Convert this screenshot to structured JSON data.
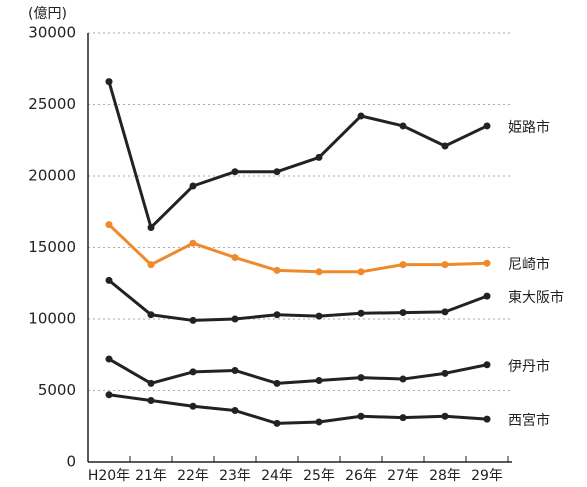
{
  "chart_data": {
    "type": "line",
    "y_label": "(億円)",
    "categories": [
      "H20年",
      "21年",
      "22年",
      "23年",
      "24年",
      "25年",
      "26年",
      "27年",
      "28年",
      "29年"
    ],
    "series": [
      {
        "name": "姫路市",
        "color": "#222222",
        "values": [
          26600,
          16400,
          19300,
          20300,
          20300,
          21300,
          24200,
          23500,
          22100,
          23500
        ]
      },
      {
        "name": "尼崎市",
        "color": "#ef8a2a",
        "values": [
          16600,
          13800,
          15300,
          14300,
          13400,
          13300,
          13300,
          13800,
          13800,
          13900
        ]
      },
      {
        "name": "東大阪市",
        "color": "#222222",
        "values": [
          12700,
          10300,
          9900,
          10000,
          10300,
          10200,
          10400,
          10450,
          10500,
          11600
        ]
      },
      {
        "name": "伊丹市",
        "color": "#222222",
        "values": [
          7200,
          5500,
          6300,
          6400,
          5500,
          5700,
          5900,
          5800,
          6200,
          6800
        ]
      },
      {
        "name": "西宮市",
        "color": "#222222",
        "values": [
          4700,
          4300,
          3900,
          3600,
          2700,
          2800,
          3200,
          3100,
          3200,
          3000
        ]
      }
    ],
    "ylim": [
      0,
      30000
    ],
    "yticks": [
      0,
      5000,
      10000,
      15000,
      20000,
      25000,
      30000
    ],
    "grid": true
  }
}
